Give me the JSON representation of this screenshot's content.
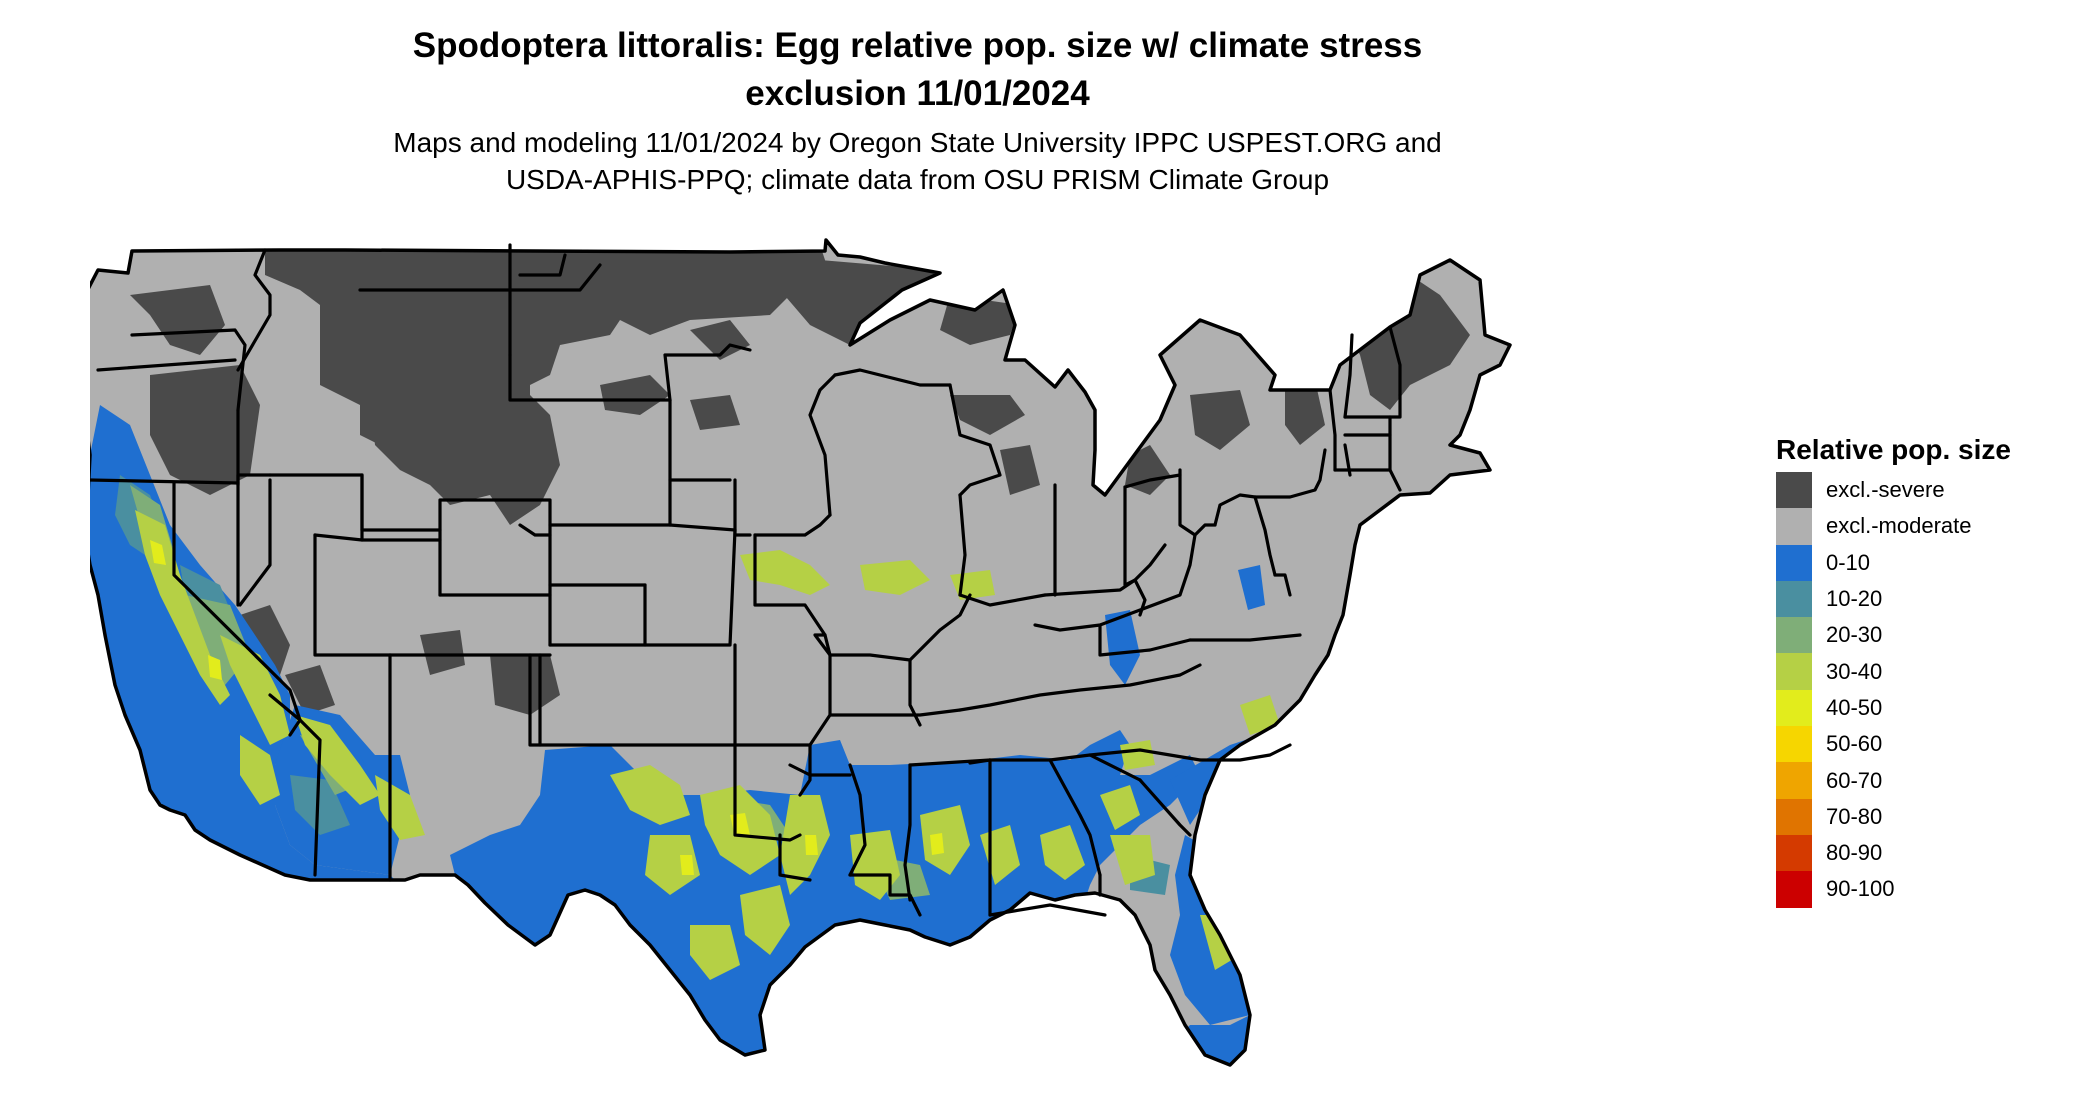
{
  "title": {
    "line1": "Spodoptera littoralis: Egg relative pop. size w/ climate stress",
    "line2": "exclusion 11/01/2024"
  },
  "subtitle": {
    "line1": "Maps and modeling 11/01/2024 by Oregon State University IPPC USPEST.ORG and",
    "line2": "USDA-APHIS-PPQ; climate data from OSU PRISM Climate Group"
  },
  "legend": {
    "title": "Relative pop. size",
    "items": [
      {
        "label": "excl.-severe",
        "color": "#4a4a4a"
      },
      {
        "label": "excl.-moderate",
        "color": "#b0b0b0"
      },
      {
        "label": "0-10",
        "color": "#1f6fd0"
      },
      {
        "label": "10-20",
        "color": "#4a8fa0"
      },
      {
        "label": "20-30",
        "color": "#7fae78"
      },
      {
        "label": "30-40",
        "color": "#b5d045"
      },
      {
        "label": "40-50",
        "color": "#e2ec1c"
      },
      {
        "label": "50-60",
        "color": "#f6d600"
      },
      {
        "label": "60-70",
        "color": "#efa500"
      },
      {
        "label": "70-80",
        "color": "#e07400"
      },
      {
        "label": "80-90",
        "color": "#d43a00"
      },
      {
        "label": "90-100",
        "color": "#cc0000"
      }
    ]
  }
}
